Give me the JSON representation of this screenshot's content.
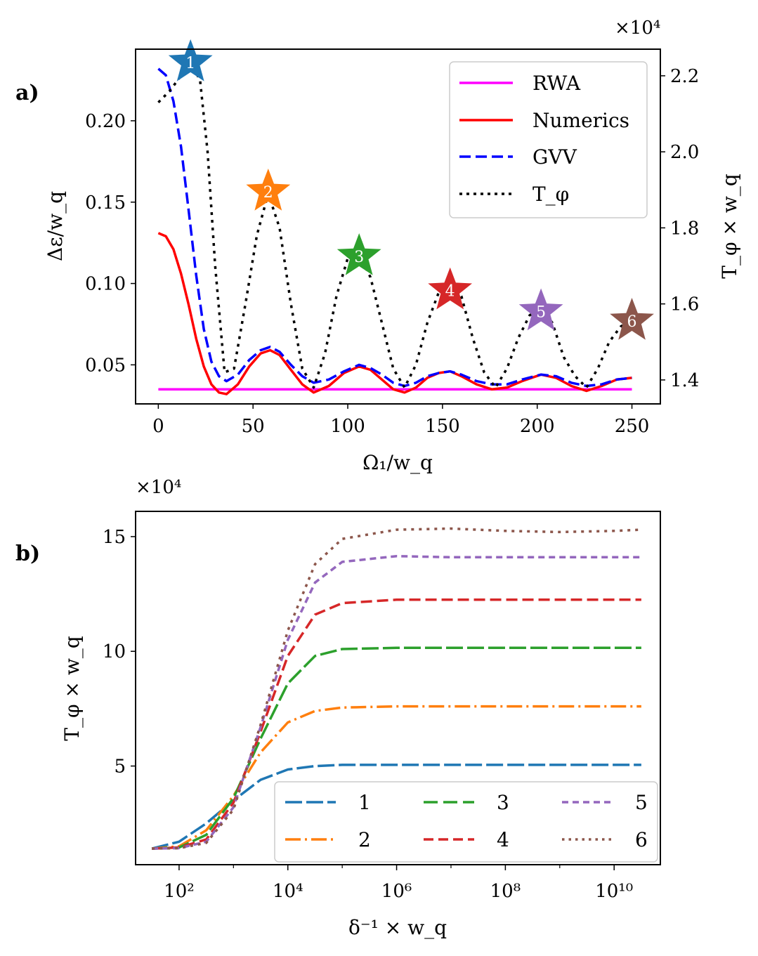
{
  "panels": [
    {
      "label": "a)",
      "xlabel": "Ω₁/w_q",
      "ylabel": "Δε/w_q",
      "y2label": "T_φ × w_q",
      "y2_multiplier": "×10⁴",
      "xticks": [
        "0",
        "50",
        "100",
        "150",
        "200",
        "250"
      ],
      "yticks": [
        "0.05",
        "0.10",
        "0.15",
        "0.20"
      ],
      "y2ticks": [
        "1.4",
        "1.6",
        "1.8",
        "2.0",
        "2.2"
      ],
      "legend": [
        "RWA",
        "Numerics",
        "GVV",
        "T_φ"
      ]
    },
    {
      "label": "b)",
      "xlabel": "δ⁻¹ × w_q",
      "ylabel": "T_φ × w_q",
      "y_multiplier": "×10⁴",
      "xticks": [
        "10²",
        "10⁴",
        "10⁶",
        "10⁸",
        "10¹⁰"
      ],
      "yticks": [
        "5",
        "10",
        "15"
      ],
      "legend": [
        "1",
        "2",
        "3",
        "4",
        "5",
        "6"
      ]
    }
  ],
  "chart_data": [
    {
      "type": "line",
      "title": "a)",
      "xlabel": "Ω1/wq",
      "ylabel": "Δε/wq",
      "y2label": "Tφ × wq (×10^4)",
      "xlim": [
        -12,
        265
      ],
      "ylim": [
        0.026,
        0.244
      ],
      "y2lim": [
        1.337,
        2.27
      ],
      "series": [
        {
          "name": "RWA",
          "axis": "left",
          "color": "#ff00ff",
          "dash": "solid",
          "x": [
            0,
            250
          ],
          "y": [
            0.035,
            0.035
          ]
        },
        {
          "name": "Numerics",
          "axis": "left",
          "color": "#ff0000",
          "dash": "solid",
          "x": [
            0,
            4,
            8,
            12,
            16,
            20,
            24,
            28,
            32,
            36,
            42,
            48,
            54,
            59,
            64,
            70,
            76,
            82,
            90,
            98,
            106,
            112,
            118,
            124,
            130,
            136,
            142,
            148,
            154,
            160,
            168,
            176,
            184,
            192,
            202,
            210,
            218,
            226,
            234,
            242,
            250
          ],
          "y": [
            0.131,
            0.129,
            0.121,
            0.106,
            0.087,
            0.066,
            0.049,
            0.038,
            0.033,
            0.032,
            0.038,
            0.049,
            0.057,
            0.059,
            0.056,
            0.047,
            0.038,
            0.033,
            0.037,
            0.045,
            0.049,
            0.047,
            0.041,
            0.035,
            0.033,
            0.036,
            0.042,
            0.045,
            0.046,
            0.043,
            0.038,
            0.035,
            0.036,
            0.04,
            0.044,
            0.042,
            0.037,
            0.034,
            0.037,
            0.041,
            0.042
          ]
        },
        {
          "name": "GVV",
          "axis": "left",
          "color": "#0000ff",
          "dash": "dashed",
          "x": [
            0,
            4,
            8,
            12,
            16,
            20,
            24,
            28,
            32,
            36,
            42,
            48,
            54,
            59,
            64,
            70,
            76,
            82,
            90,
            98,
            106,
            112,
            118,
            124,
            130,
            136,
            142,
            148,
            154,
            160,
            168,
            176,
            184,
            192,
            202,
            210,
            218,
            226,
            234,
            242,
            250
          ],
          "y": [
            0.232,
            0.228,
            0.212,
            0.184,
            0.145,
            0.105,
            0.072,
            0.052,
            0.043,
            0.04,
            0.044,
            0.053,
            0.059,
            0.061,
            0.058,
            0.05,
            0.043,
            0.039,
            0.041,
            0.046,
            0.05,
            0.048,
            0.044,
            0.039,
            0.037,
            0.039,
            0.043,
            0.045,
            0.046,
            0.044,
            0.04,
            0.038,
            0.038,
            0.041,
            0.044,
            0.043,
            0.039,
            0.037,
            0.038,
            0.041,
            0.042
          ]
        },
        {
          "name": "Tφ",
          "axis": "right",
          "color": "#000000",
          "dash": "dotted",
          "x": [
            0,
            6,
            12,
            17,
            22,
            26,
            30,
            35,
            40,
            46,
            52,
            58,
            64,
            70,
            76,
            82,
            88,
            94,
            100,
            106,
            112,
            118,
            124,
            130,
            136,
            142,
            148,
            154,
            160,
            166,
            172,
            178,
            184,
            190,
            196,
            202,
            208,
            214,
            220,
            226,
            232,
            238,
            244,
            250
          ],
          "y": [
            2.13,
            2.16,
            2.2,
            2.23,
            2.19,
            2.0,
            1.7,
            1.42,
            1.43,
            1.6,
            1.78,
            1.89,
            1.8,
            1.6,
            1.43,
            1.38,
            1.47,
            1.62,
            1.72,
            1.73,
            1.67,
            1.55,
            1.43,
            1.38,
            1.44,
            1.55,
            1.63,
            1.66,
            1.62,
            1.51,
            1.42,
            1.38,
            1.43,
            1.51,
            1.57,
            1.59,
            1.55,
            1.46,
            1.41,
            1.38,
            1.43,
            1.5,
            1.54,
            1.56
          ]
        }
      ],
      "annotations": [
        {
          "label": "1",
          "x": 17,
          "y2": 2.235,
          "color": "#1f77b4"
        },
        {
          "label": "2",
          "x": 58,
          "y2": 1.895,
          "color": "#ff7f0e"
        },
        {
          "label": "3",
          "x": 106,
          "y2": 1.725,
          "color": "#2ca02c"
        },
        {
          "label": "4",
          "x": 154,
          "y2": 1.635,
          "color": "#d62728"
        },
        {
          "label": "5",
          "x": 202,
          "y2": 1.58,
          "color": "#9467bd"
        },
        {
          "label": "6",
          "x": 250,
          "y2": 1.555,
          "color": "#8c564b"
        }
      ],
      "legend_position": "upper right"
    },
    {
      "type": "line",
      "title": "b)",
      "xlabel": "δ^-1 × wq",
      "ylabel": "Tφ × wq (×10^4)",
      "xscale": "log",
      "xlim_log10": [
        1.2,
        10.85
      ],
      "ylim": [
        0.7,
        16.1
      ],
      "series": [
        {
          "name": "1",
          "color": "#1f77b4",
          "dash": "long-dash",
          "x_log10": [
            1.5,
            2,
            2.5,
            3,
            3.5,
            4,
            4.5,
            5,
            6,
            7,
            8,
            9,
            10,
            10.5
          ],
          "y": [
            1.4,
            1.7,
            2.5,
            3.5,
            4.4,
            4.85,
            5.0,
            5.05,
            5.05,
            5.05,
            5.05,
            5.05,
            5.05,
            5.05
          ]
        },
        {
          "name": "2",
          "color": "#ff7f0e",
          "dash": "dash-dot",
          "x_log10": [
            1.5,
            2,
            2.5,
            3,
            3.5,
            4,
            4.5,
            5,
            6,
            7,
            8,
            9,
            10,
            10.5
          ],
          "y": [
            1.4,
            1.5,
            2.2,
            3.7,
            5.6,
            6.9,
            7.4,
            7.55,
            7.6,
            7.6,
            7.6,
            7.6,
            7.6,
            7.6
          ]
        },
        {
          "name": "3",
          "color": "#2ca02c",
          "dash": "long-dash",
          "x_log10": [
            1.5,
            2,
            2.5,
            3,
            3.5,
            4,
            4.5,
            5,
            6,
            7,
            8,
            9,
            10,
            10.5
          ],
          "y": [
            1.4,
            1.45,
            2.0,
            3.6,
            6.2,
            8.6,
            9.8,
            10.1,
            10.15,
            10.15,
            10.15,
            10.15,
            10.15,
            10.15
          ]
        },
        {
          "name": "4",
          "color": "#d62728",
          "dash": "dashed",
          "x_log10": [
            1.5,
            2,
            2.5,
            3,
            3.5,
            4,
            4.5,
            5,
            6,
            7,
            8,
            9,
            10,
            10.5
          ],
          "y": [
            1.4,
            1.45,
            1.8,
            3.4,
            6.5,
            9.8,
            11.6,
            12.1,
            12.25,
            12.25,
            12.25,
            12.25,
            12.25,
            12.25
          ]
        },
        {
          "name": "5",
          "color": "#9467bd",
          "dash": "short-dash",
          "x_log10": [
            1.5,
            2,
            2.5,
            3,
            3.5,
            4,
            4.5,
            5,
            6,
            7,
            8,
            9,
            10,
            10.5
          ],
          "y": [
            1.4,
            1.42,
            1.7,
            3.2,
            6.7,
            10.5,
            13.0,
            13.9,
            14.15,
            14.1,
            14.1,
            14.1,
            14.1,
            14.1
          ]
        },
        {
          "name": "6",
          "color": "#8c564b",
          "dash": "dotted",
          "x_log10": [
            1.5,
            2,
            2.5,
            3,
            3.5,
            4,
            4.5,
            5,
            6,
            7,
            8,
            9,
            10,
            10.5
          ],
          "y": [
            1.4,
            1.42,
            1.65,
            3.1,
            6.8,
            10.9,
            13.8,
            14.9,
            15.3,
            15.35,
            15.25,
            15.2,
            15.25,
            15.3
          ]
        }
      ],
      "legend_position": "lower right",
      "legend_ncol": 3
    }
  ]
}
